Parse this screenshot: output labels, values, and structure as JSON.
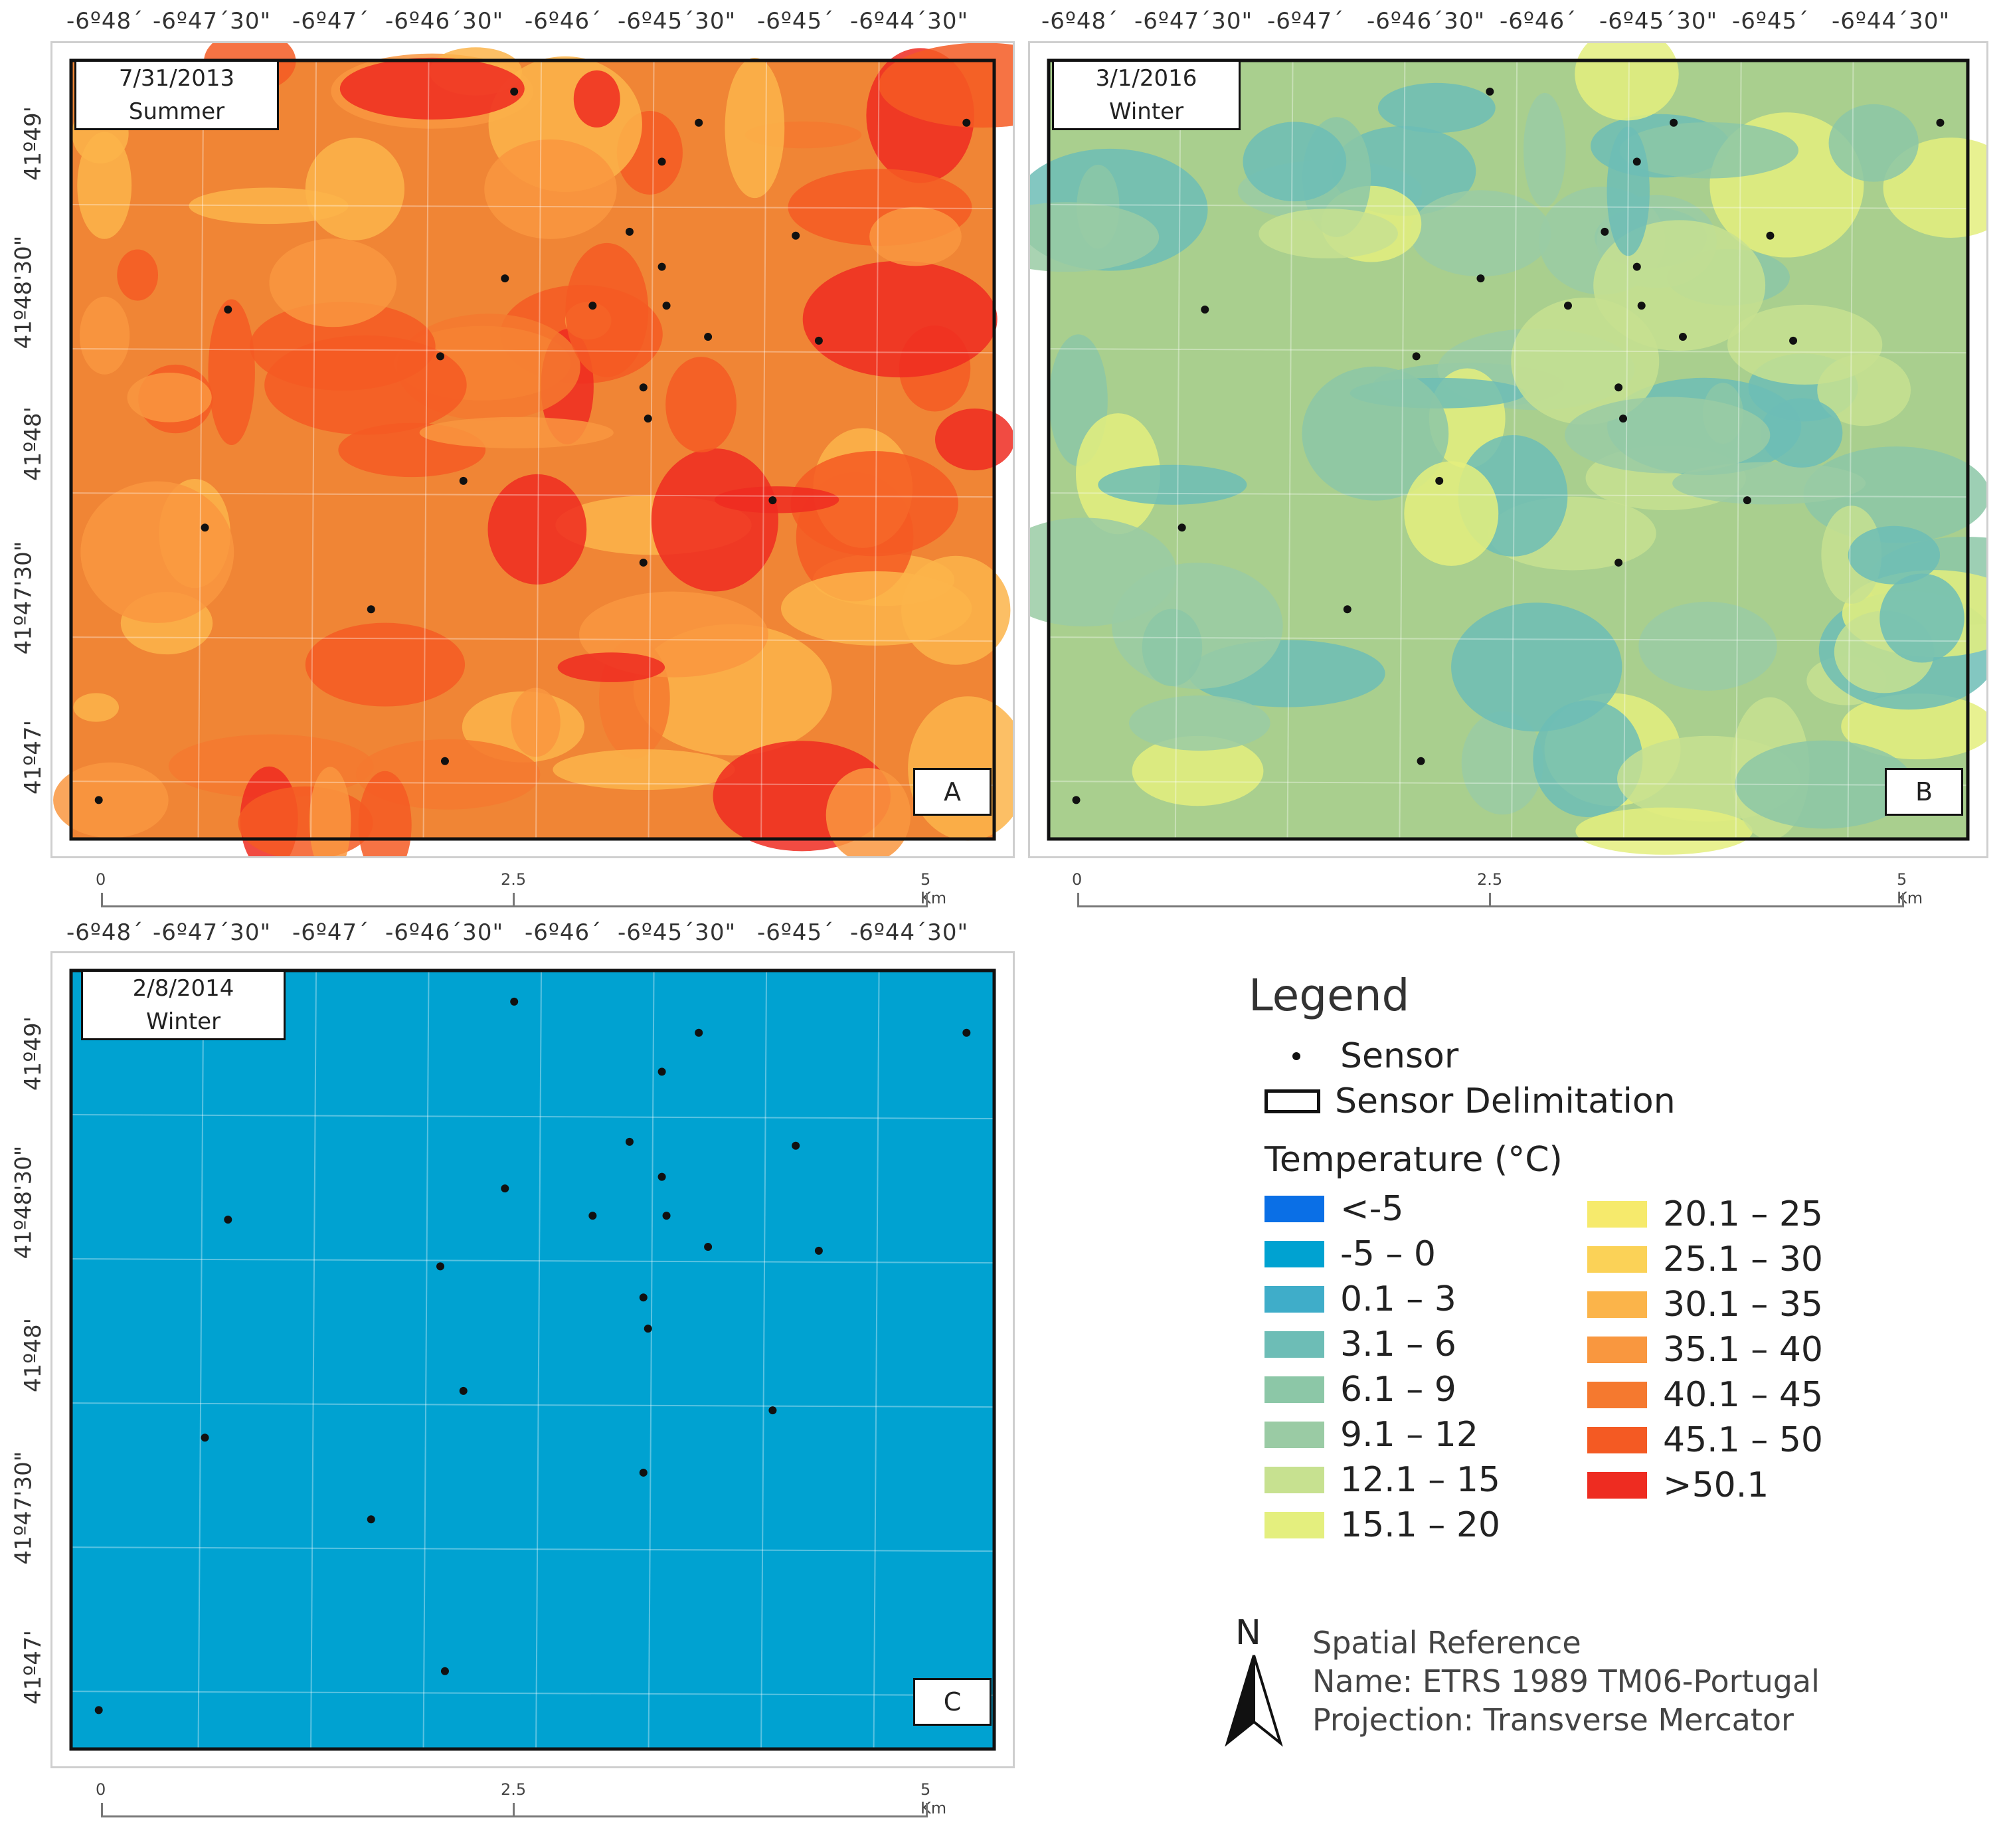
{
  "lon_labels": [
    "-6º48´",
    "-6º47´30\"",
    "-6º47´",
    "-6º46´30\"",
    "-6º46´",
    "-6º45´30\"",
    "-6º45´",
    "-6º44´30\""
  ],
  "lat_labels": [
    "41º49'",
    "41º48'30\"",
    "41º48'",
    "41º47'30\"",
    "41º47'"
  ],
  "scale": {
    "zero": "0",
    "mid": "2.5",
    "end": "5 Km"
  },
  "panels": [
    {
      "id": "A",
      "date": "7/31/2013",
      "season": "Summer",
      "letter": "A",
      "base_color": "#f08535"
    },
    {
      "id": "B",
      "date": "3/1/2016",
      "season": "Winter",
      "letter": "B",
      "base_color": "#a9cf8e"
    },
    {
      "id": "C",
      "date": "2/8/2014",
      "season": "Winter",
      "letter": "C",
      "base_color": "#00a2d1"
    }
  ],
  "sensors_fraction": [
    [
      0.48,
      0.04
    ],
    [
      0.68,
      0.08
    ],
    [
      0.97,
      0.08
    ],
    [
      0.64,
      0.13
    ],
    [
      0.605,
      0.22
    ],
    [
      0.785,
      0.225
    ],
    [
      0.64,
      0.265
    ],
    [
      0.47,
      0.28
    ],
    [
      0.645,
      0.315
    ],
    [
      0.17,
      0.32
    ],
    [
      0.565,
      0.315
    ],
    [
      0.69,
      0.355
    ],
    [
      0.4,
      0.38
    ],
    [
      0.81,
      0.36
    ],
    [
      0.62,
      0.42
    ],
    [
      0.625,
      0.46
    ],
    [
      0.425,
      0.54
    ],
    [
      0.76,
      0.565
    ],
    [
      0.145,
      0.6
    ],
    [
      0.62,
      0.645
    ],
    [
      0.325,
      0.705
    ],
    [
      0.405,
      0.9
    ],
    [
      0.03,
      0.95
    ]
  ],
  "legend": {
    "title": "Legend",
    "sensor": "Sensor",
    "delimitation": "Sensor Delimitation",
    "temp_title": "Temperature (°C)",
    "classes_left": [
      {
        "label": "<-5",
        "color": "#0a6fe6"
      },
      {
        "label": "-5 – 0",
        "color": "#00a2d1"
      },
      {
        "label": "0.1 – 3",
        "color": "#3fadc9"
      },
      {
        "label": "3.1 – 6",
        "color": "#6dbdb6"
      },
      {
        "label": "6.1 – 9",
        "color": "#8cc7a7"
      },
      {
        "label": "9.1 – 12",
        "color": "#9acba4"
      },
      {
        "label": "12.1 – 15",
        "color": "#c7e190"
      },
      {
        "label": "15.1 – 20",
        "color": "#e4ef7e"
      }
    ],
    "classes_right": [
      {
        "label": "20.1 – 25",
        "color": "#f6ea6c"
      },
      {
        "label": "25.1 – 30",
        "color": "#fbd257"
      },
      {
        "label": "30.1 – 35",
        "color": "#fbb44a"
      },
      {
        "label": "35.1 – 40",
        "color": "#f9973f"
      },
      {
        "label": "40.1 – 45",
        "color": "#f5792f"
      },
      {
        "label": "45.1 – 50",
        "color": "#f45a23"
      },
      {
        "label": ">50.1",
        "color": "#ee2c21"
      }
    ]
  },
  "north": "N",
  "spatial_reference": {
    "line1": "Spatial Reference",
    "line2": "Name: ETRS 1989 TM06-Portugal",
    "line3": "Projection: Transverse Mercator"
  }
}
